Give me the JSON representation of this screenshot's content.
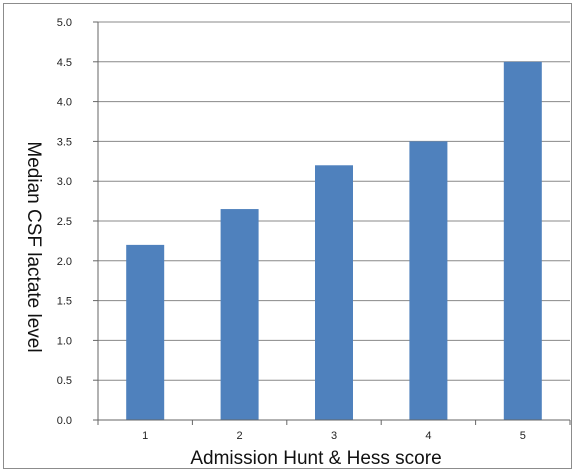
{
  "chart_data": {
    "type": "bar",
    "categories": [
      "1",
      "2",
      "3",
      "4",
      "5"
    ],
    "values": [
      2.2,
      2.65,
      3.2,
      3.5,
      4.5
    ],
    "xlabel": "Admission Hunt & Hess score",
    "ylabel": "Median CSF lactate level",
    "ylim": [
      0,
      5
    ],
    "yticks": [
      "0.0",
      "0.5",
      "1.0",
      "1.5",
      "2.0",
      "2.5",
      "3.0",
      "3.5",
      "4.0",
      "4.5",
      "5.0"
    ],
    "grid": true,
    "legend": "none",
    "bar_color": "#4f81bd",
    "grid_color": "#888888"
  }
}
